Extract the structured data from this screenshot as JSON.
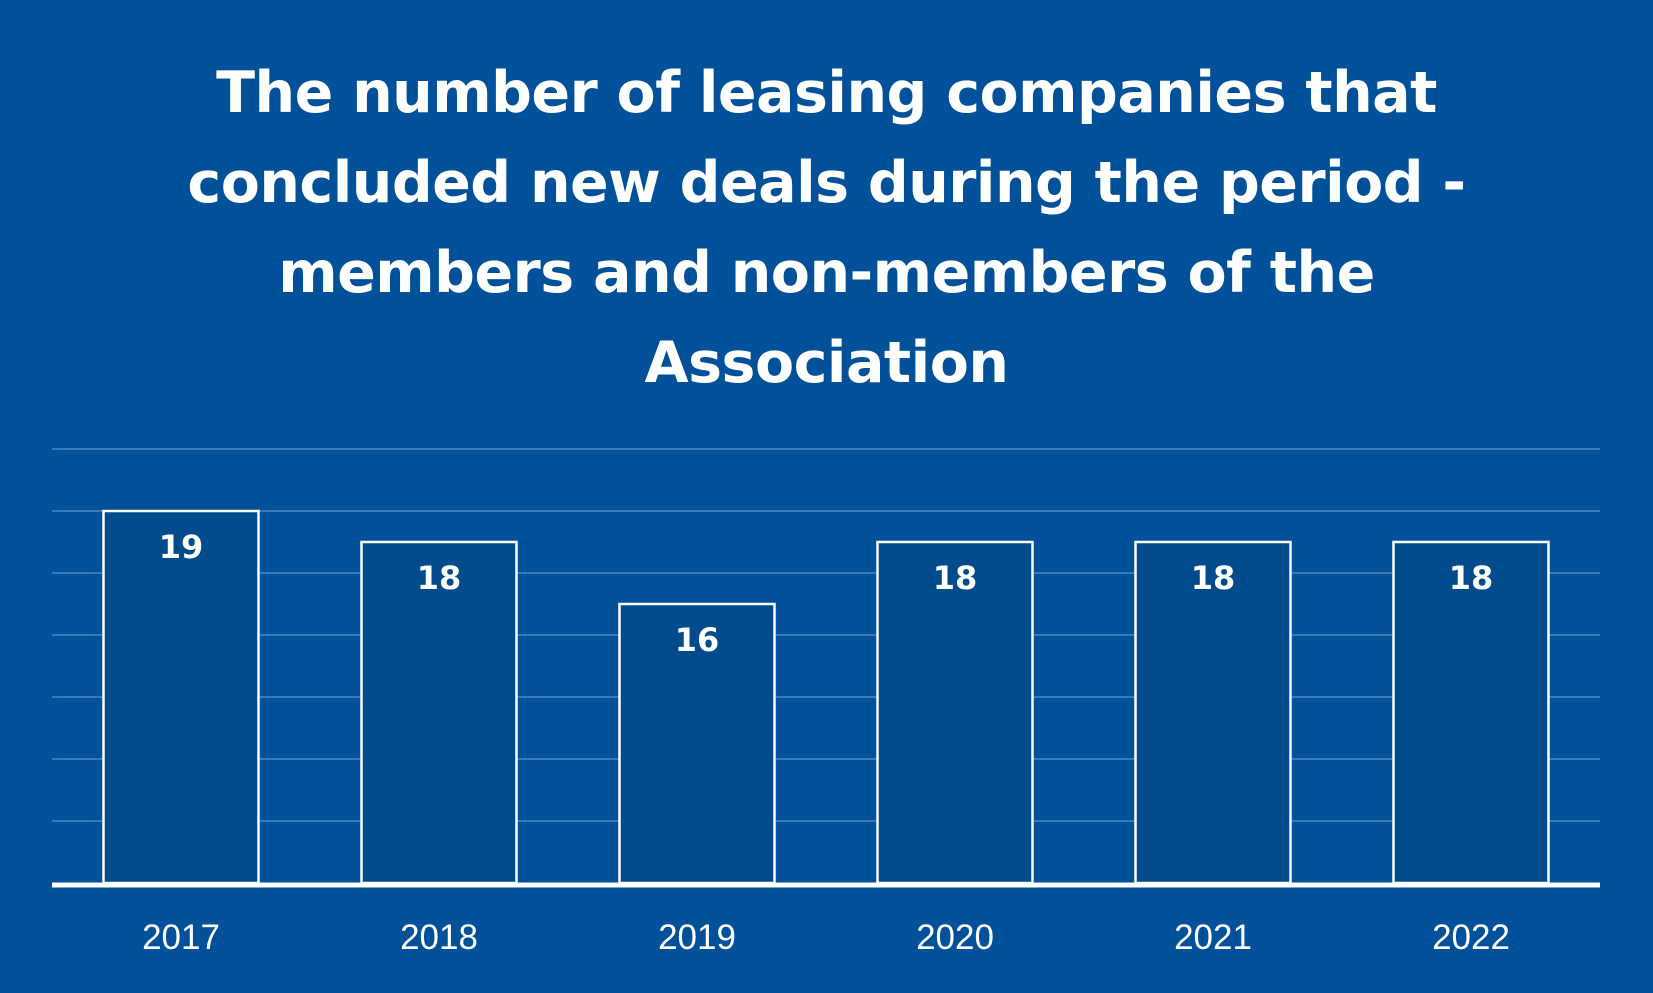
{
  "colors": {
    "background": "#00509a",
    "bar_fill": "#004b8c",
    "bar_stroke": "#ffffff",
    "gridline": "#3a78b8",
    "axis": "#ffffff",
    "text": "#ffffff"
  },
  "chart_data": {
    "type": "bar",
    "title": "The number of leasing companies that concluded new deals during the period - members and non-members of the Association",
    "xlabel": "",
    "ylabel": "",
    "categories": [
      "2017",
      "2018",
      "2019",
      "2020",
      "2021",
      "2022"
    ],
    "values": [
      19,
      18,
      16,
      18,
      18,
      18
    ],
    "data_labels": [
      "19",
      "18",
      "16",
      "18",
      "18",
      "18"
    ],
    "ylim": [
      7,
      21
    ],
    "y_gridline_step": 2,
    "grid": true,
    "legend": "none",
    "y_axis_labels_shown": false
  }
}
